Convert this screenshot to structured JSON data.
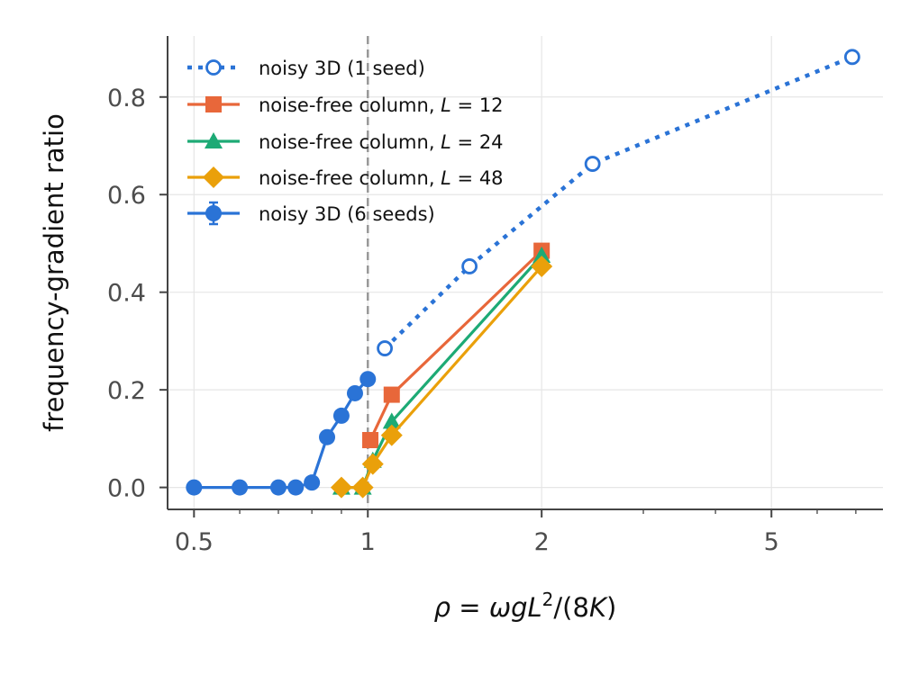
{
  "chart_data": {
    "type": "line",
    "xscale": "log",
    "xlim": [
      0.45,
      7.8
    ],
    "ylim": [
      -0.045,
      0.925
    ],
    "xticks": [
      {
        "value": 0.5,
        "label": "0.5"
      },
      {
        "value": 1,
        "label": "1"
      },
      {
        "value": 2,
        "label": "2"
      },
      {
        "value": 5,
        "label": "5"
      }
    ],
    "yticks": [
      {
        "value": 0.0,
        "label": "0.0"
      },
      {
        "value": 0.2,
        "label": "0.2"
      },
      {
        "value": 0.4,
        "label": "0.4"
      },
      {
        "value": 0.6,
        "label": "0.6"
      },
      {
        "value": 0.8,
        "label": "0.8"
      }
    ],
    "xlabel": "ρ = ωgL²/(8K)",
    "ylabel": "frequency-gradient ratio",
    "grid": true,
    "legend_position": "top-left",
    "reference_line": {
      "x": 1.0,
      "style": "dashed",
      "color": "#999999"
    },
    "series": [
      {
        "name": "noisy 3D (1 seed)",
        "color": "#2a73d6",
        "marker": "open-circle",
        "linestyle": "dotted",
        "points": [
          [
            1.07,
            0.285
          ],
          [
            1.5,
            0.453
          ],
          [
            2.45,
            0.663
          ],
          [
            6.9,
            0.882
          ]
        ]
      },
      {
        "name": "noise-free column, L = 12",
        "color": "#e8673a",
        "marker": "square",
        "linestyle": "solid",
        "points": [
          [
            1.01,
            0.097
          ],
          [
            1.1,
            0.19
          ],
          [
            2.0,
            0.485
          ]
        ]
      },
      {
        "name": "noise-free column, L = 24",
        "color": "#1daa75",
        "marker": "triangle",
        "linestyle": "solid",
        "points": [
          [
            0.9,
            0.0
          ],
          [
            0.98,
            0.0
          ],
          [
            1.02,
            0.055
          ],
          [
            1.1,
            0.135
          ],
          [
            2.0,
            0.475
          ]
        ]
      },
      {
        "name": "noise-free column, L = 48",
        "color": "#eaa00a",
        "marker": "diamond",
        "linestyle": "solid",
        "points": [
          [
            0.9,
            0.0
          ],
          [
            0.98,
            0.0
          ],
          [
            1.02,
            0.048
          ],
          [
            1.1,
            0.107
          ],
          [
            2.0,
            0.453
          ]
        ]
      },
      {
        "name": "noisy 3D (6 seeds)",
        "color": "#2a73d6",
        "marker": "circle",
        "linestyle": "solid",
        "points": [
          [
            0.5,
            0.0
          ],
          [
            0.6,
            0.0
          ],
          [
            0.7,
            0.0
          ],
          [
            0.75,
            0.0
          ],
          [
            0.8,
            0.01
          ],
          [
            0.85,
            0.103
          ],
          [
            0.9,
            0.147
          ],
          [
            0.95,
            0.193
          ],
          [
            1.0,
            0.222
          ]
        ]
      }
    ]
  }
}
